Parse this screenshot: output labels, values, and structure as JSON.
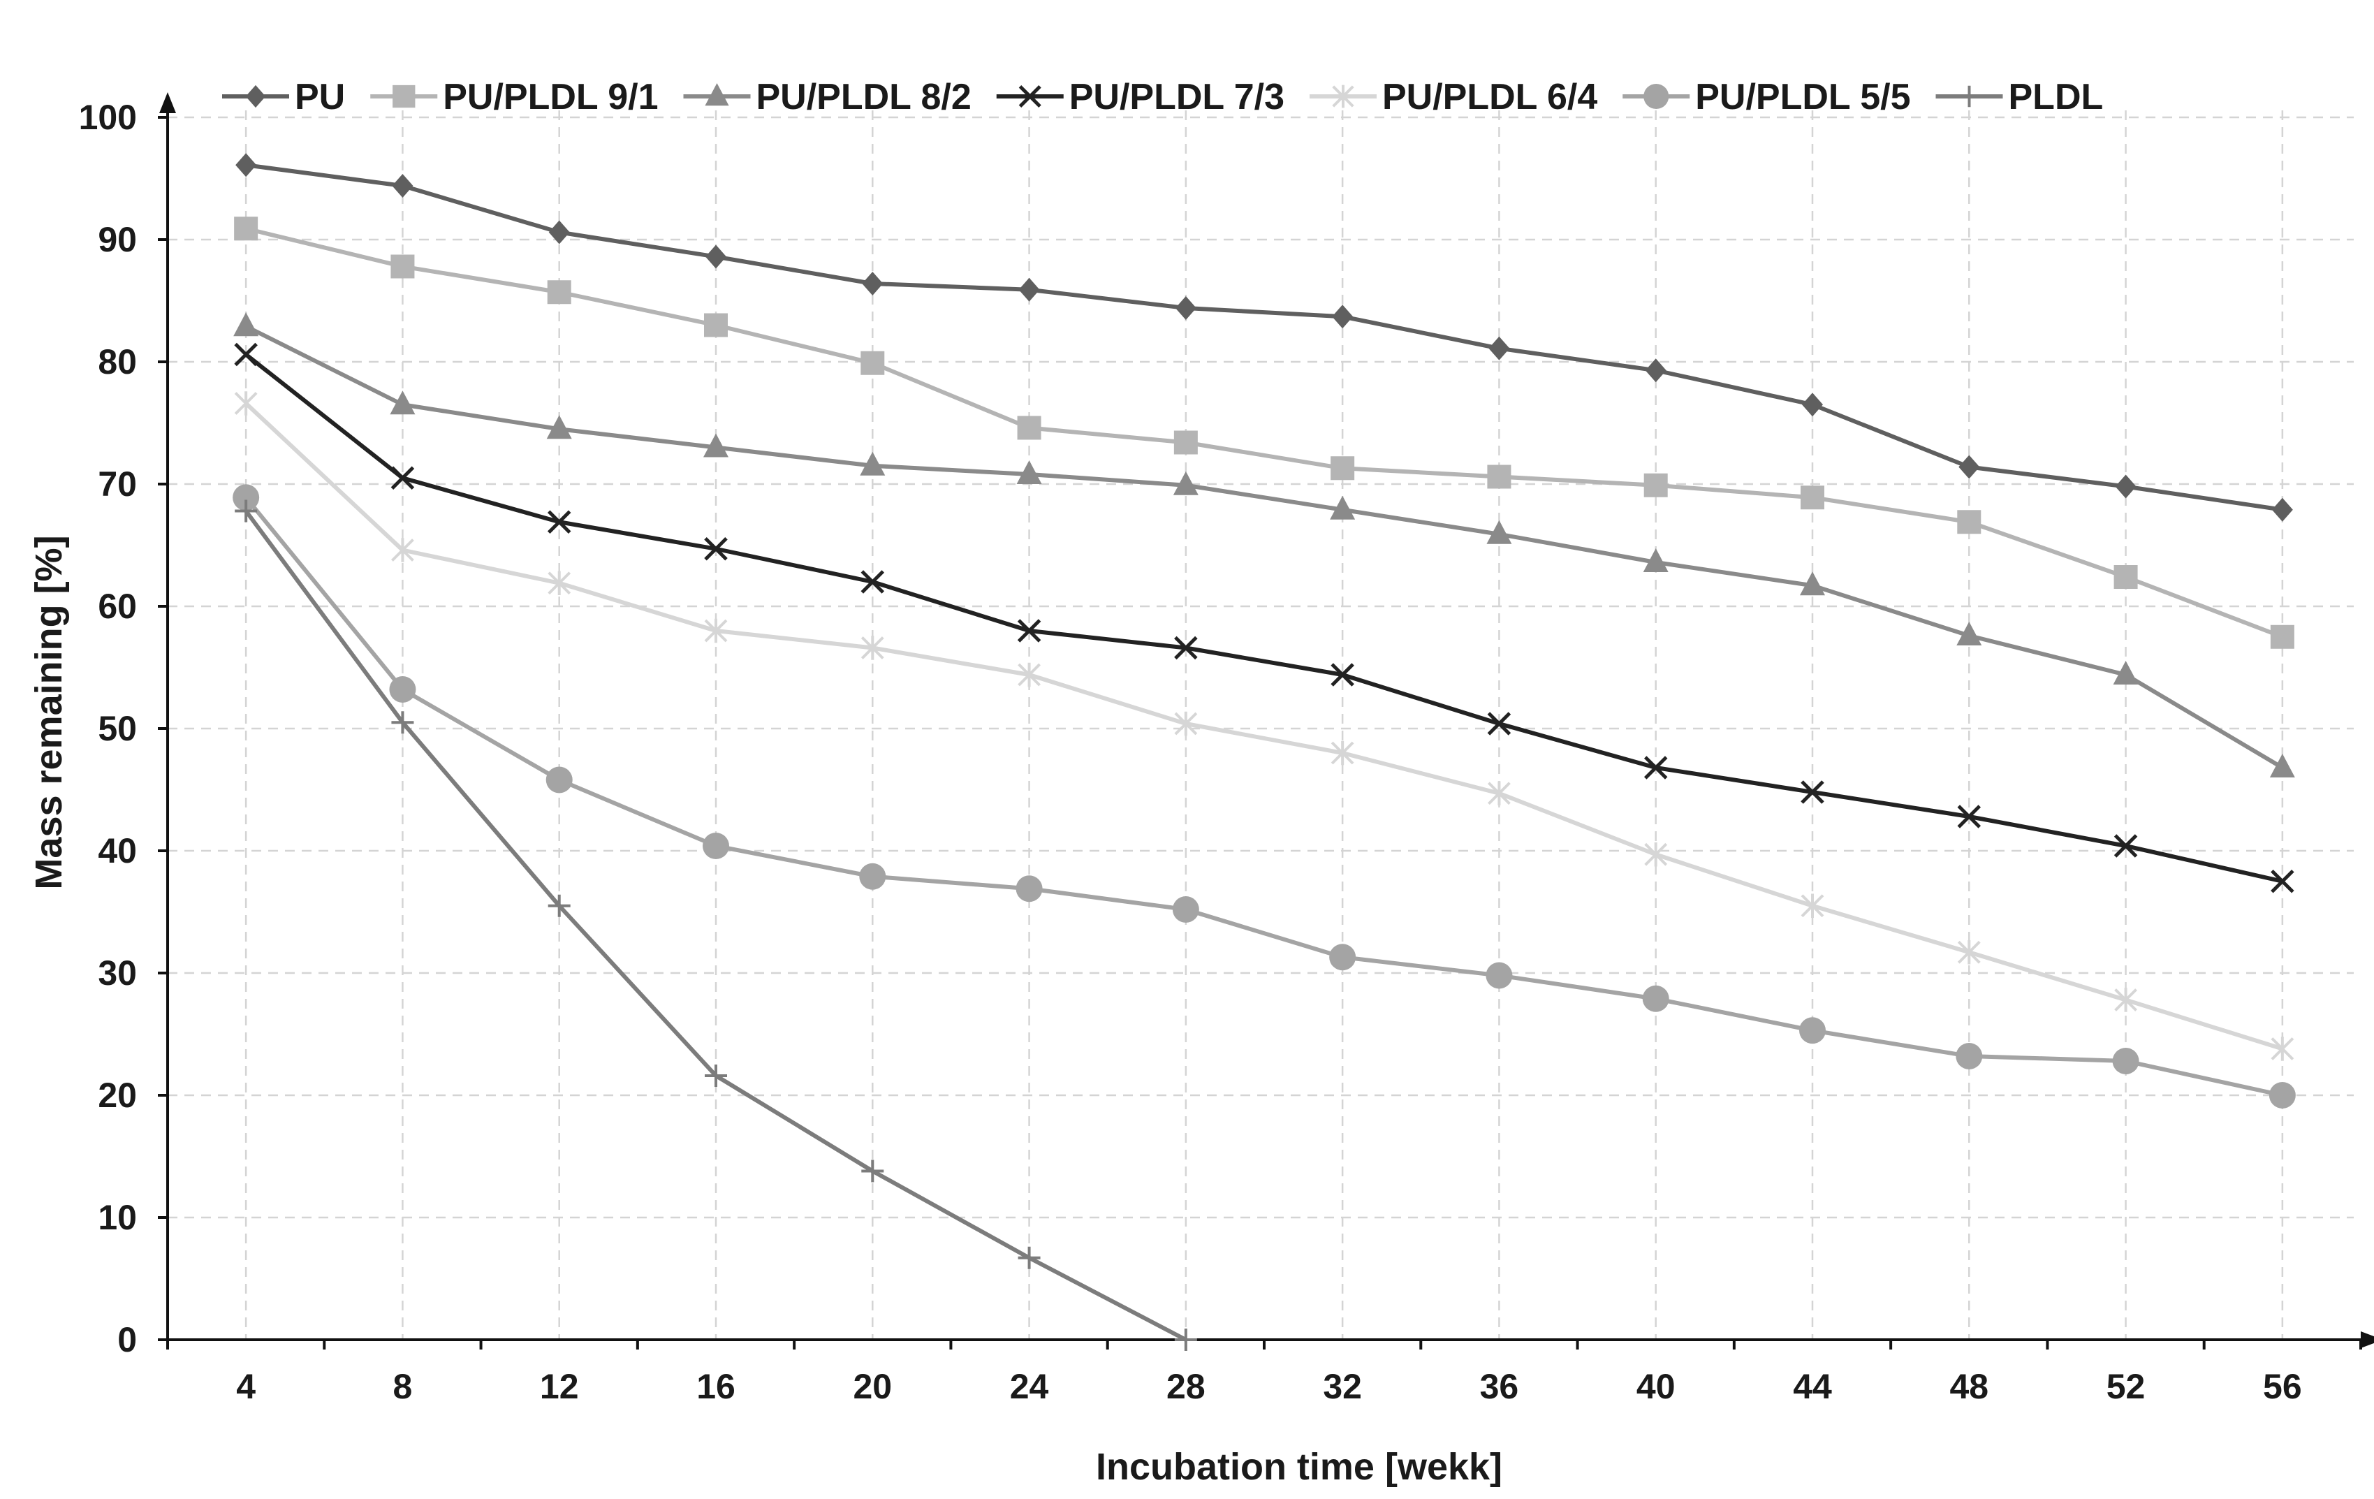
{
  "chart_data": {
    "type": "line",
    "title": "",
    "xlabel": "Incubation time [wekk]",
    "ylabel": "Mass remaining [%]",
    "x": [
      4,
      8,
      12,
      16,
      20,
      24,
      28,
      32,
      36,
      40,
      44,
      48,
      52,
      56
    ],
    "xlim": [
      2,
      58
    ],
    "ylim": [
      0,
      100
    ],
    "yticks": [
      0,
      10,
      20,
      30,
      40,
      50,
      60,
      70,
      80,
      90,
      100
    ],
    "grid": true,
    "grid_style": "dashed",
    "legend_position": "top",
    "series": [
      {
        "name": "PU",
        "marker": "diamond",
        "color": "#5f5f5f",
        "values": [
          96.1,
          94.4,
          90.6,
          88.6,
          86.4,
          85.9,
          84.4,
          83.7,
          81.1,
          79.3,
          76.5,
          71.4,
          69.8,
          67.9
        ]
      },
      {
        "name": "PU/PLDL 9/1",
        "marker": "square",
        "color": "#b4b4b4",
        "values": [
          90.9,
          87.8,
          85.7,
          83.0,
          79.9,
          74.6,
          73.4,
          71.3,
          70.6,
          69.9,
          68.9,
          66.9,
          62.4,
          57.5
        ]
      },
      {
        "name": "PU/PLDL 8/2",
        "marker": "triangle",
        "color": "#8a8a8a",
        "values": [
          82.9,
          76.5,
          74.5,
          73.0,
          71.5,
          70.8,
          69.9,
          67.9,
          65.9,
          63.6,
          61.7,
          57.6,
          54.4,
          46.8
        ]
      },
      {
        "name": "PU/PLDL 7/3",
        "marker": "x",
        "color": "#222222",
        "values": [
          80.6,
          70.5,
          66.9,
          64.7,
          62.0,
          58.0,
          56.6,
          54.4,
          50.4,
          46.8,
          44.8,
          42.8,
          40.4,
          37.5
        ]
      },
      {
        "name": "PU/PLDL 6/4",
        "marker": "star",
        "color": "#d6d6d6",
        "values": [
          76.6,
          64.6,
          61.9,
          58.0,
          56.6,
          54.4,
          50.4,
          48.0,
          44.7,
          39.7,
          35.5,
          31.7,
          27.8,
          23.8
        ]
      },
      {
        "name": "PU/PLDL 5/5",
        "marker": "circle",
        "color": "#a4a4a4",
        "values": [
          68.9,
          53.2,
          45.8,
          40.4,
          37.9,
          36.9,
          35.2,
          31.3,
          29.8,
          27.9,
          25.3,
          23.2,
          22.8,
          20.0
        ]
      },
      {
        "name": "PLDL",
        "marker": "plus",
        "color": "#7c7c7c",
        "values": [
          67.8,
          50.5,
          35.5,
          21.6,
          13.8,
          6.7,
          0.0,
          null,
          null,
          null,
          null,
          null,
          null,
          null
        ]
      }
    ]
  }
}
